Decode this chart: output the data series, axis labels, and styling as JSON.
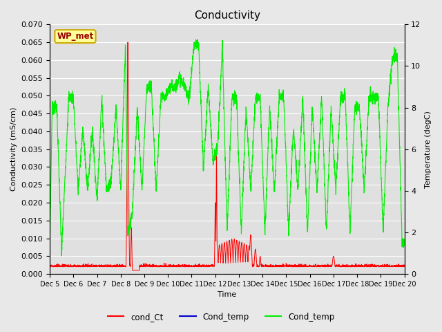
{
  "title": "Conductivity",
  "xlabel": "Time",
  "ylabel_left": "Conductivity (mS/cm)",
  "ylabel_right": "Temperature (degC)",
  "ylim_left": [
    0,
    0.07
  ],
  "ylim_right": [
    0,
    12
  ],
  "yticks_left": [
    0.0,
    0.005,
    0.01,
    0.015,
    0.02,
    0.025,
    0.03,
    0.035,
    0.04,
    0.045,
    0.05,
    0.055,
    0.06,
    0.065,
    0.07
  ],
  "yticks_right": [
    0,
    2,
    4,
    6,
    8,
    10,
    12
  ],
  "fig_bg_color": "#e8e8e8",
  "plot_bg_color": "#e0e0e0",
  "legend_label": "WP_met",
  "legend_bg": "#ffff99",
  "legend_border": "#ccaa00",
  "legend_text_color": "#990000",
  "grid_color": "#ffffff",
  "red_color": "#ff0000",
  "blue_color": "#0000cc",
  "green_color": "#00ee00",
  "title_fontsize": 11,
  "label_fontsize": 8,
  "tick_fontsize": 8
}
